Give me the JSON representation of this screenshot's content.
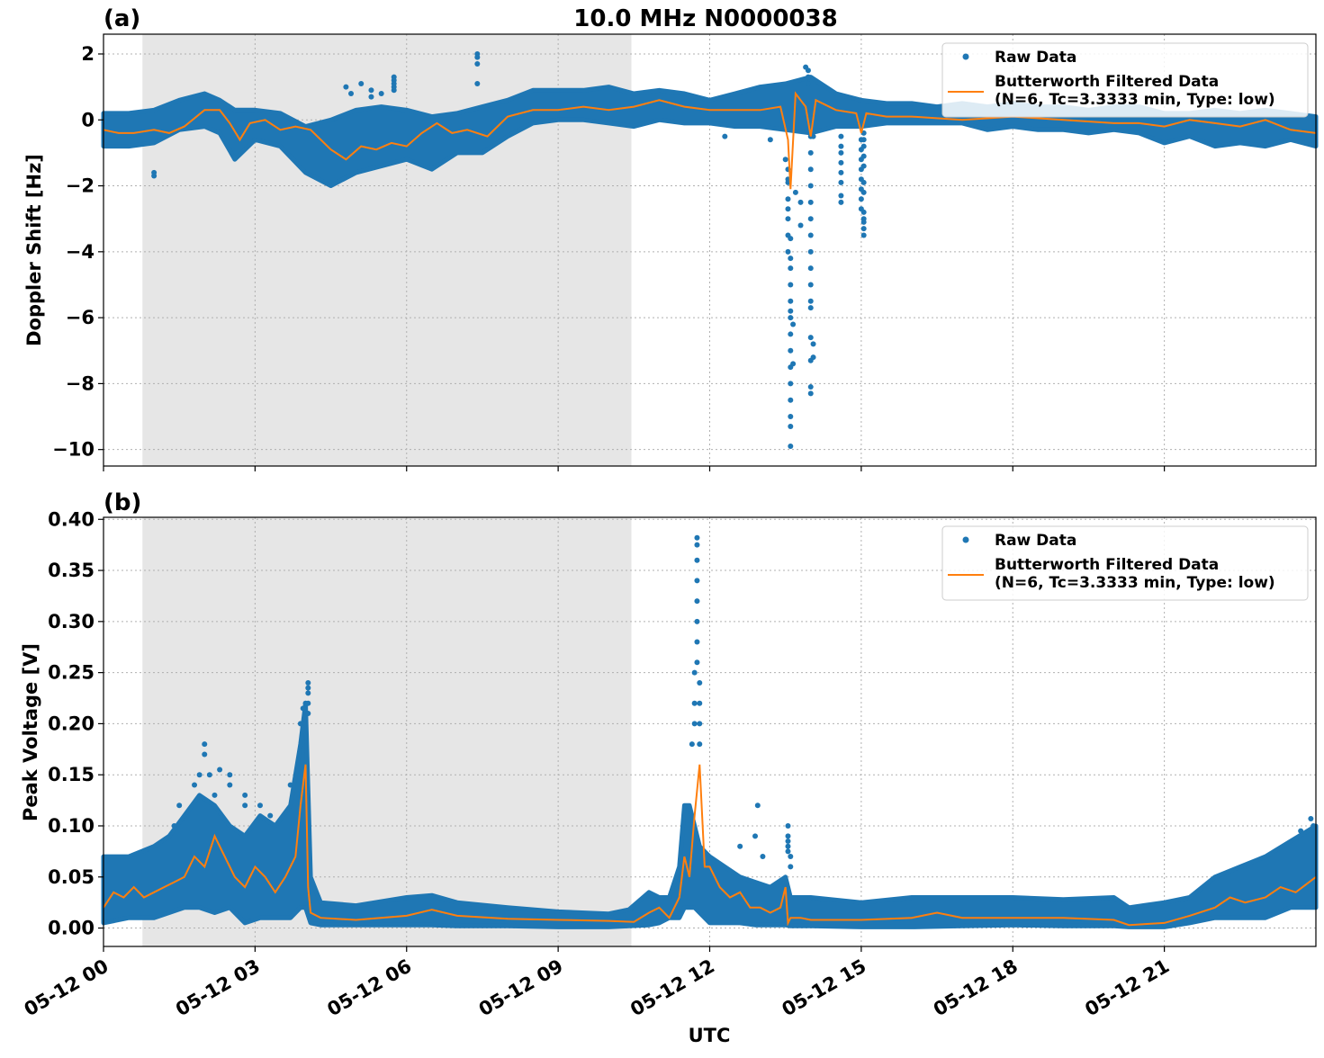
{
  "figure": {
    "title": "10.0 MHz N0000038",
    "xlabel": "UTC",
    "colors": {
      "raw": "#1f77b4",
      "filtered": "#ff7f0e",
      "shade": "#e6e6e6"
    }
  },
  "chart_data": [
    {
      "type": "scatter",
      "panel_label": "(a)",
      "title": "10.0 MHz N0000038",
      "xlabel": "",
      "ylabel": "Doppler Shift [Hz]",
      "xlim": [
        0,
        24
      ],
      "ylim": [
        -10.5,
        2.6
      ],
      "yticks": [
        2,
        0,
        -2,
        -4,
        -6,
        -8,
        -10
      ],
      "ytick_labels": [
        "2",
        "0",
        "−2",
        "−4",
        "−6",
        "−8",
        "−10"
      ],
      "shaded_interval": [
        0.77,
        10.45
      ],
      "grid": true,
      "legend_position": "upper-right",
      "legend": [
        "Raw Data",
        "Butterworth Filtered Data",
        "(N=6, Tc=3.3333 min, Type: low)"
      ],
      "series": [
        {
          "name": "Raw Data",
          "kind": "band",
          "x": [
            0,
            0.5,
            1,
            1.5,
            2,
            2.3,
            2.6,
            3,
            3.5,
            4,
            4.5,
            5,
            5.5,
            6,
            6.5,
            7,
            7.5,
            8,
            8.5,
            9,
            9.5,
            10,
            10.5,
            11,
            11.5,
            12,
            12.5,
            13,
            13.5,
            14,
            14.5,
            15,
            15.5,
            16,
            16.5,
            17,
            17.5,
            18,
            18.5,
            19,
            19.5,
            20,
            20.5,
            21,
            21.5,
            22,
            22.5,
            23,
            23.5,
            24
          ],
          "y_low": [
            -0.8,
            -0.8,
            -0.7,
            -0.3,
            -0.2,
            -0.4,
            -1.2,
            -0.6,
            -0.8,
            -1.6,
            -2.0,
            -1.6,
            -1.4,
            -1.2,
            -1.5,
            -1.0,
            -1.0,
            -0.5,
            -0.1,
            0.0,
            0.0,
            -0.1,
            -0.2,
            0.0,
            -0.1,
            -0.1,
            -0.2,
            -0.2,
            -0.3,
            -0.4,
            -0.2,
            -0.2,
            -0.1,
            -0.1,
            -0.1,
            -0.1,
            -0.3,
            -0.2,
            -0.3,
            -0.3,
            -0.4,
            -0.3,
            -0.4,
            -0.7,
            -0.5,
            -0.8,
            -0.7,
            -0.8,
            -0.6,
            -0.8
          ],
          "y_high": [
            0.2,
            0.2,
            0.3,
            0.6,
            0.8,
            0.6,
            0.3,
            0.3,
            0.2,
            -0.2,
            0.0,
            0.3,
            0.4,
            0.3,
            0.1,
            0.2,
            0.4,
            0.6,
            0.9,
            0.9,
            0.9,
            1.0,
            0.8,
            0.9,
            0.8,
            0.6,
            0.8,
            1.0,
            1.1,
            1.3,
            0.8,
            0.6,
            0.5,
            0.5,
            0.4,
            0.5,
            0.4,
            0.5,
            0.4,
            0.4,
            0.3,
            0.4,
            0.4,
            0.2,
            0.2,
            0.3,
            0.2,
            0.3,
            0.2,
            0.1
          ]
        },
        {
          "name": "Raw Data",
          "kind": "points",
          "x": [
            1.0,
            1.0,
            4.8,
            4.9,
            5.1,
            5.3,
            5.3,
            5.5,
            5.75,
            5.75,
            5.75,
            5.75,
            5.75,
            7.4,
            7.4,
            7.4,
            7.4,
            12.3,
            13.2,
            13.5,
            13.55,
            13.55,
            13.55,
            13.55,
            13.55,
            13.55,
            13.55,
            13.55,
            13.6,
            13.6,
            13.6,
            13.6,
            13.6,
            13.6,
            13.6,
            13.6,
            13.6,
            13.6,
            13.6,
            13.6,
            13.6,
            13.6,
            13.6,
            13.65,
            13.65,
            13.7,
            13.8,
            13.8,
            13.9,
            13.95,
            13.95,
            13.95,
            14.0,
            14.0,
            14.0,
            14.0,
            14.0,
            14.0,
            14.0,
            14.0,
            14.0,
            14.0,
            14.0,
            14.0,
            14.0,
            14.0,
            14.0,
            14.0,
            14.05,
            14.05,
            14.05,
            14.6,
            14.6,
            14.6,
            14.6,
            14.6,
            14.6,
            14.6,
            14.6,
            15.0,
            15.0,
            15.0,
            15.0,
            15.0,
            15.0,
            15.0,
            15.0,
            15.05,
            15.05,
            15.05,
            15.05,
            15.05,
            15.05,
            15.05,
            15.05,
            15.05,
            15.05,
            15.05,
            15.05
          ],
          "y": [
            -1.6,
            -1.7,
            1.0,
            0.8,
            1.1,
            0.9,
            0.7,
            0.8,
            1.3,
            1.2,
            1.1,
            0.9,
            1.0,
            2.0,
            1.9,
            1.7,
            1.1,
            -0.5,
            -0.6,
            -1.2,
            -1.5,
            -1.8,
            -1.9,
            -2.4,
            -2.7,
            -3.0,
            -3.5,
            -4.0,
            -4.5,
            -5.0,
            -5.5,
            -6.0,
            -6.5,
            -7.0,
            -7.5,
            -8.0,
            -8.5,
            -9.0,
            -9.3,
            -9.9,
            -4.2,
            -3.6,
            -5.8,
            -6.2,
            -7.4,
            -2.2,
            -2.5,
            -3.2,
            1.6,
            1.5,
            1.3,
            1.1,
            -0.5,
            -1.0,
            -1.5,
            -2.0,
            -2.5,
            -3.0,
            -3.5,
            -4.0,
            -4.5,
            -5.0,
            -5.5,
            -5.7,
            -6.6,
            -7.3,
            -8.1,
            -8.3,
            -6.8,
            -7.2,
            -0.5,
            -0.5,
            -0.8,
            -1.0,
            -1.3,
            -1.6,
            -1.9,
            -2.5,
            -2.3,
            -0.6,
            -0.9,
            -1.2,
            -1.5,
            -1.8,
            -2.1,
            -2.4,
            -2.7,
            -3.0,
            -3.3,
            -3.5,
            -3.1,
            -2.8,
            -2.2,
            -1.9,
            -1.4,
            -1.1,
            -0.8,
            -0.6,
            -0.4
          ]
        },
        {
          "name": "Butterworth Filtered Data",
          "x": [
            0,
            0.3,
            0.6,
            1.0,
            1.3,
            1.6,
            2.0,
            2.3,
            2.5,
            2.7,
            2.9,
            3.2,
            3.5,
            3.8,
            4.1,
            4.5,
            4.8,
            5.1,
            5.4,
            5.7,
            6.0,
            6.3,
            6.6,
            6.9,
            7.2,
            7.6,
            8.0,
            8.5,
            9.0,
            9.5,
            10.0,
            10.5,
            11.0,
            11.5,
            12.0,
            12.5,
            13.0,
            13.4,
            13.55,
            13.6,
            13.7,
            13.8,
            13.9,
            14.0,
            14.1,
            14.5,
            14.9,
            15.0,
            15.1,
            15.5,
            16.0,
            17.0,
            18.0,
            19.0,
            20.0,
            20.5,
            21.0,
            21.5,
            22.0,
            22.5,
            23.0,
            23.5,
            24.0
          ],
          "y": [
            -0.3,
            -0.4,
            -0.4,
            -0.3,
            -0.4,
            -0.2,
            0.3,
            0.3,
            -0.1,
            -0.6,
            -0.1,
            0.0,
            -0.3,
            -0.2,
            -0.3,
            -0.9,
            -1.2,
            -0.8,
            -0.9,
            -0.7,
            -0.8,
            -0.4,
            -0.1,
            -0.4,
            -0.3,
            -0.5,
            0.1,
            0.3,
            0.3,
            0.4,
            0.3,
            0.4,
            0.6,
            0.4,
            0.3,
            0.3,
            0.3,
            0.4,
            -0.6,
            -2.1,
            0.8,
            0.6,
            0.4,
            -0.5,
            0.6,
            0.3,
            0.2,
            -0.4,
            0.2,
            0.1,
            0.1,
            0.0,
            0.1,
            0.0,
            -0.1,
            -0.1,
            -0.2,
            0.0,
            -0.1,
            -0.2,
            0.0,
            -0.3,
            -0.4
          ]
        }
      ]
    },
    {
      "type": "scatter",
      "panel_label": "(b)",
      "xlabel": "UTC",
      "ylabel": "Peak Voltage [V]",
      "xlim": [
        0,
        24
      ],
      "ylim": [
        -0.018,
        0.402
      ],
      "yticks": [
        0.0,
        0.05,
        0.1,
        0.15,
        0.2,
        0.25,
        0.3,
        0.35,
        0.4
      ],
      "ytick_labels": [
        "0.00",
        "0.05",
        "0.10",
        "0.15",
        "0.20",
        "0.25",
        "0.30",
        "0.35",
        "0.40"
      ],
      "xticks": [
        0,
        3,
        6,
        9,
        12,
        15,
        18,
        21
      ],
      "xtick_labels": [
        "05-12 00",
        "05-12 03",
        "05-12 06",
        "05-12 09",
        "05-12 12",
        "05-12 15",
        "05-12 18",
        "05-12 21"
      ],
      "shaded_interval": [
        0.77,
        10.45
      ],
      "grid": true,
      "legend_position": "upper-right",
      "legend": [
        "Raw Data",
        "Butterworth Filtered Data",
        "(N=6, Tc=3.3333 min, Type: low)"
      ],
      "series": [
        {
          "name": "Raw Data",
          "kind": "band",
          "x": [
            0,
            0.5,
            1,
            1.3,
            1.6,
            1.9,
            2.2,
            2.5,
            2.8,
            3.1,
            3.4,
            3.7,
            3.9,
            4.0,
            4.1,
            4.3,
            5,
            6,
            6.5,
            7,
            8,
            9,
            10,
            10.4,
            10.8,
            11.0,
            11.2,
            11.4,
            11.5,
            11.6,
            11.7,
            11.8,
            12.0,
            12.3,
            12.6,
            12.9,
            13.2,
            13.5,
            13.6,
            14,
            15,
            16,
            17,
            18,
            19,
            20,
            20.3,
            21,
            21.5,
            22,
            22.5,
            23,
            23.5,
            24
          ],
          "y_low": [
            0.005,
            0.01,
            0.01,
            0.015,
            0.02,
            0.02,
            0.015,
            0.02,
            0.005,
            0.01,
            0.01,
            0.01,
            0.02,
            0.02,
            0.005,
            0.003,
            0.003,
            0.003,
            0.003,
            0.002,
            0.002,
            0.001,
            0.001,
            0.002,
            0.003,
            0.005,
            0.01,
            0.01,
            0.02,
            0.02,
            0.02,
            0.015,
            0.005,
            0.005,
            0.005,
            0.003,
            0.003,
            0.003,
            0.002,
            0.002,
            0.001,
            0.001,
            0.002,
            0.003,
            0.002,
            0.002,
            0.001,
            0.001,
            0.005,
            0.01,
            0.01,
            0.01,
            0.02,
            0.02
          ],
          "y_high": [
            0.07,
            0.07,
            0.08,
            0.09,
            0.11,
            0.13,
            0.12,
            0.1,
            0.09,
            0.11,
            0.1,
            0.12,
            0.18,
            0.22,
            0.05,
            0.025,
            0.022,
            0.03,
            0.032,
            0.025,
            0.02,
            0.016,
            0.014,
            0.018,
            0.035,
            0.03,
            0.03,
            0.06,
            0.12,
            0.12,
            0.1,
            0.08,
            0.07,
            0.06,
            0.05,
            0.045,
            0.04,
            0.05,
            0.03,
            0.03,
            0.025,
            0.03,
            0.03,
            0.03,
            0.028,
            0.03,
            0.02,
            0.025,
            0.03,
            0.05,
            0.06,
            0.07,
            0.085,
            0.1
          ]
        },
        {
          "name": "Raw Data",
          "kind": "points",
          "x": [
            1.4,
            1.5,
            1.8,
            1.9,
            2.0,
            2.0,
            2.1,
            2.2,
            2.3,
            2.5,
            2.5,
            2.8,
            2.8,
            3.1,
            3.3,
            3.7,
            3.9,
            3.95,
            4.0,
            4.0,
            4.05,
            4.05,
            4.05,
            4.05,
            4.05,
            11.65,
            11.7,
            11.7,
            11.7,
            11.75,
            11.75,
            11.75,
            11.75,
            11.75,
            11.75,
            11.75,
            11.75,
            11.8,
            11.8,
            11.8,
            11.8,
            12.6,
            12.9,
            12.95,
            13.05,
            13.55,
            13.55,
            13.55,
            13.55,
            13.55,
            13.6,
            13.6,
            23.7,
            23.9,
            23.95
          ],
          "y": [
            0.1,
            0.12,
            0.14,
            0.15,
            0.18,
            0.17,
            0.15,
            0.13,
            0.155,
            0.15,
            0.14,
            0.13,
            0.12,
            0.12,
            0.11,
            0.14,
            0.2,
            0.215,
            0.22,
            0.2,
            0.24,
            0.235,
            0.23,
            0.22,
            0.21,
            0.18,
            0.2,
            0.22,
            0.25,
            0.382,
            0.375,
            0.36,
            0.34,
            0.32,
            0.3,
            0.28,
            0.26,
            0.24,
            0.22,
            0.2,
            0.18,
            0.08,
            0.09,
            0.12,
            0.07,
            0.1,
            0.09,
            0.085,
            0.08,
            0.075,
            0.07,
            0.06,
            0.095,
            0.107,
            0.1
          ]
        },
        {
          "name": "Butterworth Filtered Data",
          "x": [
            0,
            0.2,
            0.4,
            0.6,
            0.8,
            1.0,
            1.2,
            1.4,
            1.6,
            1.8,
            2.0,
            2.2,
            2.4,
            2.6,
            2.8,
            3.0,
            3.2,
            3.4,
            3.6,
            3.8,
            3.9,
            4.0,
            4.05,
            4.1,
            4.3,
            5.0,
            6.0,
            6.5,
            7.0,
            8.0,
            9.0,
            10.0,
            10.5,
            10.8,
            11.0,
            11.2,
            11.4,
            11.5,
            11.6,
            11.7,
            11.8,
            11.9,
            12.0,
            12.2,
            12.4,
            12.6,
            12.8,
            13.0,
            13.2,
            13.4,
            13.5,
            13.55,
            13.6,
            13.8,
            14.0,
            15.0,
            16.0,
            16.5,
            17.0,
            18.0,
            19.0,
            20.0,
            20.3,
            21.0,
            21.5,
            22.0,
            22.3,
            22.6,
            23.0,
            23.3,
            23.6,
            24.0
          ],
          "y": [
            0.02,
            0.035,
            0.03,
            0.04,
            0.03,
            0.035,
            0.04,
            0.045,
            0.05,
            0.07,
            0.06,
            0.09,
            0.07,
            0.05,
            0.04,
            0.06,
            0.05,
            0.035,
            0.05,
            0.07,
            0.12,
            0.16,
            0.04,
            0.015,
            0.01,
            0.008,
            0.012,
            0.018,
            0.012,
            0.009,
            0.008,
            0.007,
            0.006,
            0.015,
            0.02,
            0.01,
            0.03,
            0.07,
            0.05,
            0.11,
            0.16,
            0.06,
            0.06,
            0.04,
            0.03,
            0.035,
            0.02,
            0.02,
            0.015,
            0.02,
            0.04,
            0.005,
            0.01,
            0.01,
            0.008,
            0.008,
            0.01,
            0.015,
            0.01,
            0.01,
            0.01,
            0.008,
            0.003,
            0.005,
            0.012,
            0.02,
            0.03,
            0.025,
            0.03,
            0.04,
            0.035,
            0.05
          ]
        }
      ]
    }
  ]
}
